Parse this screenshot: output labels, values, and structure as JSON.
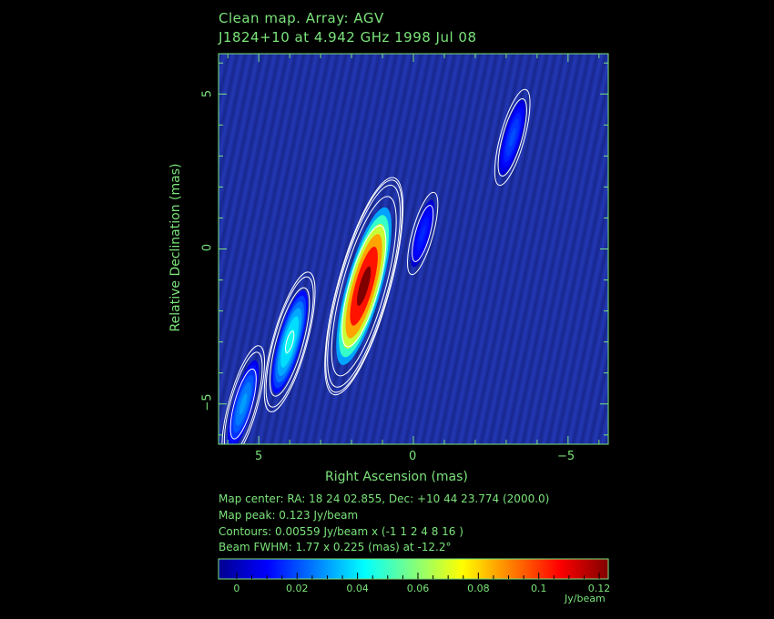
{
  "header": {
    "title_line1": "Clean map.  Array: AGV",
    "title_line2": "J1824+10 at 4.942 GHz 1998 Jul 08"
  },
  "info": {
    "map_center": "Map center:  RA: 18 24 02.855,  Dec: +10 44 23.774 (2000.0)",
    "map_peak": "Map peak: 0.123 Jy/beam",
    "contours": "Contours: 0.00559 Jy/beam x (-1 1 2 4 8 16 )",
    "beam": "Beam FWHM: 1.77 x 0.225 (mas) at -12.2°"
  },
  "colorbar": {
    "unit": "Jy/beam",
    "ticks": [
      "0",
      "0.02",
      "0.04",
      "0.06",
      "0.08",
      "0.1",
      "0.12"
    ],
    "tick_values": [
      0,
      0.02,
      0.04,
      0.06,
      0.08,
      0.1,
      0.12
    ],
    "range": [
      -0.006,
      0.123
    ]
  },
  "colors": {
    "label_green": "#7be37b",
    "background": "#000000",
    "map_floor": "#1c2fa0",
    "contour": "#ffffff"
  },
  "chart_data": {
    "type": "heatmap",
    "xlabel": "Right Ascension  (mas)",
    "ylabel": "Relative Declination  (mas)",
    "xlim": [
      6.3,
      -6.3
    ],
    "ylim": [
      -6.3,
      6.3
    ],
    "x_ticks": [
      5,
      0,
      -5
    ],
    "x_tick_labels": [
      "5",
      "0",
      "−5"
    ],
    "y_ticks": [
      5,
      0,
      -5
    ],
    "y_tick_labels": [
      "5",
      "0",
      "−5"
    ],
    "peak_jy_per_beam": 0.123,
    "contour_base_jy_per_beam": 0.00559,
    "contour_multipliers": [
      -1,
      1,
      2,
      4,
      8,
      16
    ],
    "components": [
      {
        "ra": 1.6,
        "dec": -1.2,
        "peak": 0.123
      },
      {
        "ra": 4.0,
        "dec": -3.0,
        "peak": 0.045
      },
      {
        "ra": 5.5,
        "dec": -5.0,
        "peak": 0.03
      },
      {
        "ra": -0.3,
        "dec": 0.5,
        "peak": 0.015
      },
      {
        "ra": -3.2,
        "dec": 3.6,
        "peak": 0.02
      }
    ]
  }
}
